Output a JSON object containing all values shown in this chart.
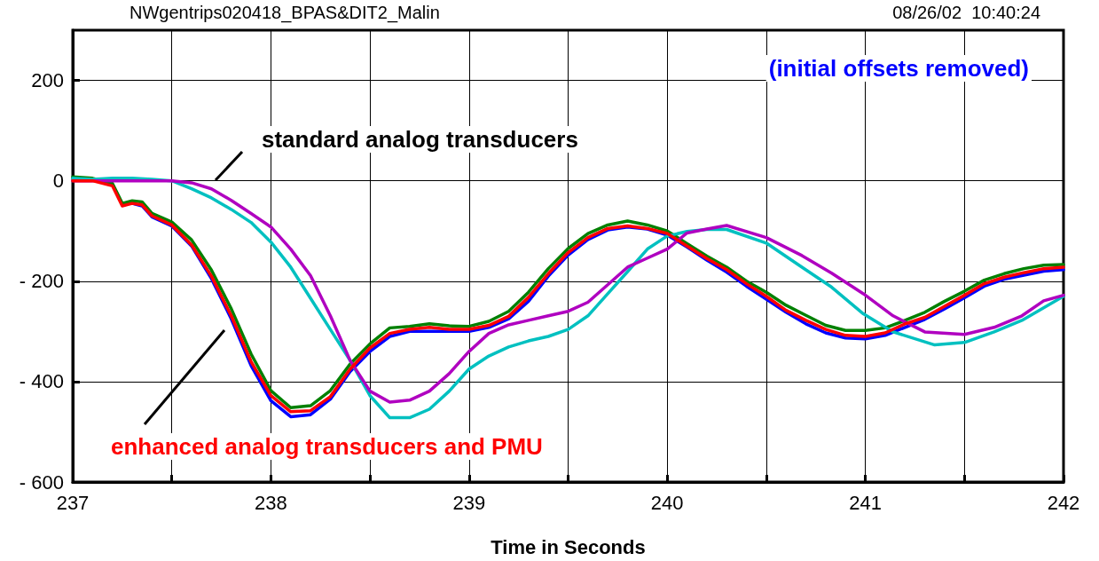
{
  "chart_data": {
    "type": "line",
    "title": "NWgentrips020418_BPAS&DIT2_Malin",
    "subtitle": "08/26/02  10:40:24",
    "xlabel": "Time in Seconds",
    "annotations": [
      "standard analog transducers",
      "enhanced analog transducers and PMU",
      "(initial offsets removed)"
    ],
    "xlim": [
      237,
      242
    ],
    "xticks": [
      237,
      {
        "value": 237.5,
        "label": null
      },
      238,
      {
        "value": 238.5,
        "label": null
      },
      239,
      {
        "value": 239.5,
        "label": null
      },
      240,
      {
        "value": 240.5,
        "label": null
      },
      241,
      {
        "value": 241.5,
        "label": null
      },
      242
    ],
    "ylim": [
      -600,
      300
    ],
    "yticks": [
      {
        "value": -600,
        "label": "- 600"
      },
      {
        "value": -400,
        "label": "- 400"
      },
      {
        "value": -200,
        "label": "- 200"
      },
      0,
      200
    ],
    "grid": true,
    "marker": "none",
    "line_style": "solid",
    "x": [
      237,
      237.1,
      237.2,
      237.25,
      237.3,
      237.35,
      237.4,
      237.5,
      237.6,
      237.7,
      237.8,
      237.9,
      238,
      238.1,
      238.2,
      238.3,
      238.4,
      238.5,
      238.6,
      238.7,
      238.8,
      238.9,
      239,
      239.1,
      239.2,
      239.3,
      239.4,
      239.5,
      239.6,
      239.7,
      239.8,
      239.9,
      240,
      240.1,
      240.2,
      240.3,
      240.4,
      240.5,
      240.6,
      240.7,
      240.8,
      240.9,
      241,
      241.1,
      241.2,
      241.3,
      241.4,
      241.5,
      241.6,
      241.7,
      241.8,
      241.9,
      242
    ],
    "series": [
      {
        "color": "#0000ff",
        "values": [
          null,
          null,
          null,
          null,
          -45,
          -50,
          -72,
          -90,
          -130,
          -195,
          -275,
          -368,
          -438,
          -470,
          -466,
          -435,
          -380,
          -340,
          -310,
          -300,
          -300,
          -300,
          -300,
          -292,
          -275,
          -240,
          -190,
          -148,
          -117,
          -98,
          -92,
          -96,
          -108,
          -132,
          -158,
          -182,
          -210,
          -236,
          -262,
          -285,
          -303,
          -313,
          -315,
          -308,
          -292,
          -276,
          -255,
          -233,
          -210,
          -196,
          -188,
          -180,
          -177
        ]
      },
      {
        "color": "#008000",
        "values": [
          8,
          5,
          -5,
          -45,
          -40,
          -42,
          -65,
          -82,
          -118,
          -178,
          -255,
          -345,
          -418,
          -452,
          -448,
          -418,
          -365,
          -325,
          -293,
          -290,
          -285,
          -289,
          -290,
          -280,
          -260,
          -222,
          -175,
          -135,
          -105,
          -88,
          -80,
          -88,
          -100,
          -125,
          -150,
          -172,
          -200,
          -222,
          -248,
          -268,
          -288,
          -298,
          -298,
          -293,
          -278,
          -262,
          -240,
          -220,
          -198,
          -185,
          -175,
          -168,
          -167
        ]
      },
      {
        "color": "#00c0c0",
        "x": [
          237,
          237.1,
          237.2,
          237.3,
          237.4,
          237.5,
          237.6,
          237.7,
          237.8,
          237.9,
          238,
          238.1,
          238.2,
          238.3,
          238.4,
          238.5,
          238.6,
          238.7,
          238.8,
          238.9,
          239,
          239.1,
          239.2,
          239.3,
          239.4,
          239.5,
          239.6,
          239.7,
          239.8,
          239.9,
          240,
          240.1,
          240.2,
          240.3,
          240.5,
          240.68,
          240.83,
          240.99,
          241.14,
          241.35,
          241.5,
          241.65,
          241.79,
          242
        ],
        "values": [
          5,
          3,
          5,
          5,
          3,
          0,
          -16,
          -34,
          -57,
          -83,
          -122,
          -172,
          -234,
          -296,
          -358,
          -428,
          -472,
          -472,
          -455,
          -419,
          -375,
          -349,
          -331,
          -319,
          -310,
          -296,
          -269,
          -225,
          -181,
          -136,
          -110,
          -101,
          -97,
          -97,
          -124,
          -172,
          -212,
          -265,
          -301,
          -327,
          -322,
          -301,
          -278,
          -230
        ]
      },
      {
        "color": "#b000c0",
        "x": [
          237,
          237.1,
          237.2,
          237.3,
          237.4,
          237.5,
          237.6,
          237.7,
          237.8,
          237.9,
          238,
          238.1,
          238.2,
          238.3,
          238.4,
          238.5,
          238.6,
          238.7,
          238.8,
          238.9,
          239,
          239.1,
          239.2,
          239.3,
          239.4,
          239.5,
          239.6,
          239.7,
          239.8,
          239.9,
          240,
          240.1,
          240.2,
          240.3,
          240.5,
          240.68,
          240.83,
          240.99,
          241.14,
          241.3,
          241.5,
          241.65,
          241.79,
          241.9,
          242
        ],
        "values": [
          0,
          0,
          0,
          0,
          0,
          0,
          -4,
          -16,
          -39,
          -65,
          -92,
          -136,
          -189,
          -269,
          -358,
          -419,
          -441,
          -437,
          -419,
          -384,
          -340,
          -304,
          -287,
          -278,
          -269,
          -260,
          -242,
          -207,
          -172,
          -154,
          -136,
          -104,
          -96,
          -89,
          -113,
          -149,
          -184,
          -225,
          -269,
          -301,
          -306,
          -292,
          -269,
          -239,
          -228
        ]
      },
      {
        "color": "#ff0000",
        "values": [
          0,
          0,
          -10,
          -50,
          -45,
          -48,
          -70,
          -88,
          -128,
          -190,
          -269,
          -360,
          -428,
          -460,
          -458,
          -430,
          -375,
          -333,
          -304,
          -296,
          -292,
          -296,
          -296,
          -288,
          -270,
          -232,
          -185,
          -143,
          -113,
          -95,
          -90,
          -95,
          -105,
          -130,
          -155,
          -177,
          -205,
          -230,
          -258,
          -278,
          -296,
          -308,
          -310,
          -303,
          -285,
          -272,
          -250,
          -228,
          -205,
          -192,
          -183,
          -175,
          -172
        ]
      }
    ]
  }
}
